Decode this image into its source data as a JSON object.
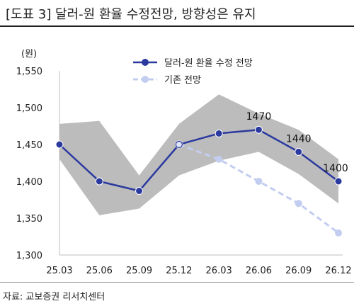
{
  "title": "[도표 3] 달러-원 환율 수정전망, 방향성은 유지",
  "source": "자료: 교보증권 리서치센터",
  "colors": {
    "forecast_line": "#2b3a9f",
    "baseline_line": "#c3cdf0",
    "band": "#bcbcbc",
    "axis": "#bdbdbd",
    "title_rule": "#1f1f1f"
  },
  "chart_data": {
    "type": "line",
    "ylabel": "(원)",
    "categories": [
      "25.03",
      "25.06",
      "25.09",
      "25.12",
      "26.03",
      "26.06",
      "26.09",
      "26.12"
    ],
    "ylim": [
      1300,
      1550
    ],
    "yticks": [
      "1,300",
      "1,350",
      "1,400",
      "1,450",
      "1,500",
      "1,550"
    ],
    "ytick_values": [
      1300,
      1350,
      1400,
      1450,
      1500,
      1550
    ],
    "legend_position": "top-right",
    "grid": false,
    "series": [
      {
        "name": "달러-원 환율 수정 전망",
        "style": "solid",
        "values": [
          1450,
          1400,
          1387,
          1450,
          1465,
          1470,
          1440,
          1400
        ]
      },
      {
        "name": "기존 전망",
        "style": "dashed",
        "values": [
          null,
          null,
          null,
          1450,
          1430,
          1400,
          1370,
          1330
        ]
      }
    ],
    "band": {
      "upper": [
        1478,
        1482,
        1408,
        1478,
        1518,
        1492,
        1470,
        1430
      ],
      "lower": [
        1430,
        1354,
        1363,
        1408,
        1428,
        1440,
        1410,
        1370
      ]
    },
    "annotations": [
      {
        "category": "26.06",
        "text": "1470"
      },
      {
        "category": "26.09",
        "text": "1440"
      },
      {
        "category": "26.12",
        "text": "1400"
      }
    ]
  }
}
